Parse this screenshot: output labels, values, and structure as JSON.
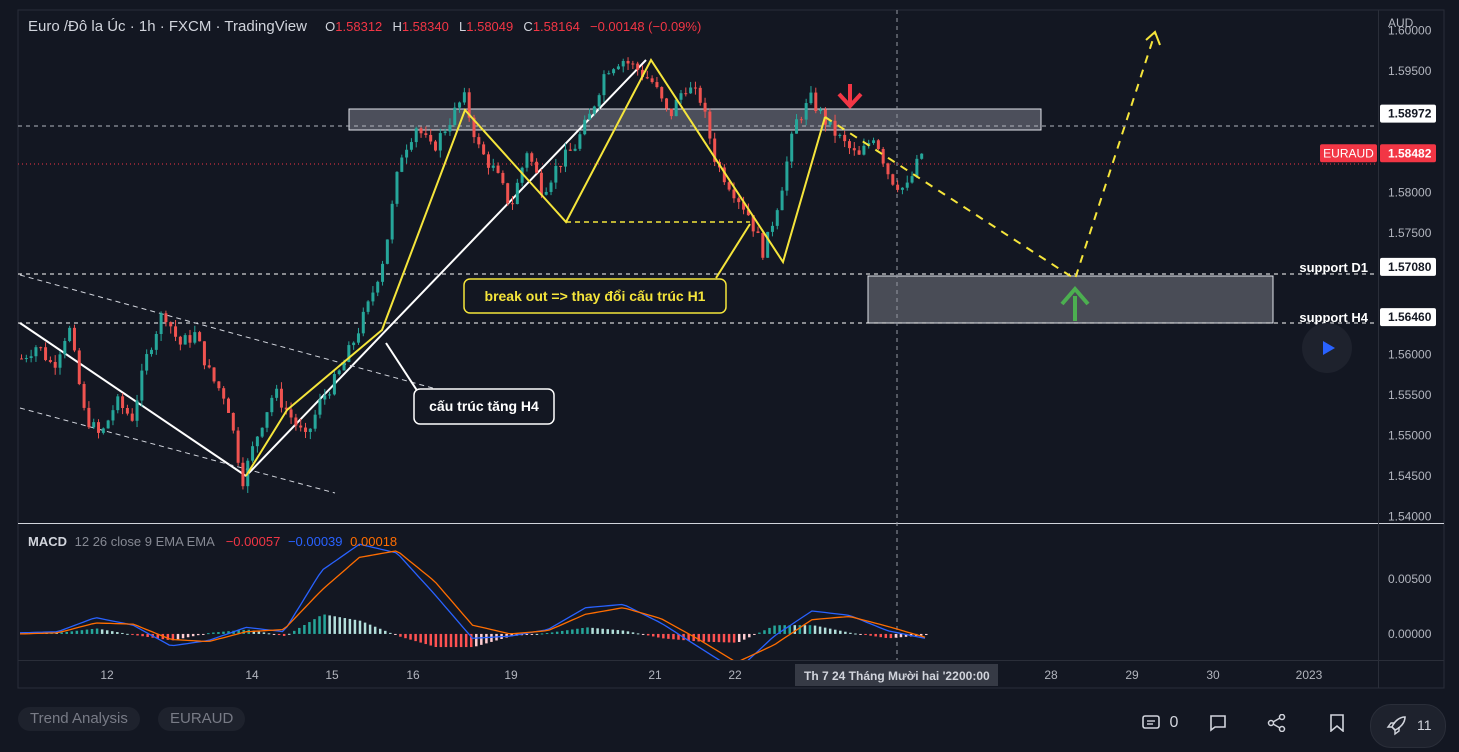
{
  "header": {
    "symbol": "Euro /Đô la Úc · 1h · FXCM · TradingView",
    "o_label": "O",
    "o_value": "1.58312",
    "h_label": "H",
    "h_value": "1.58340",
    "l_label": "L",
    "l_value": "1.58049",
    "c_label": "C",
    "c_value": "1.58164",
    "change": "−0.00148 (−0.09%)"
  },
  "macd_header": {
    "title": "MACD",
    "params": "12 26 close 9 EMA EMA",
    "hist": "−0.00057",
    "macd": "−0.00039",
    "signal": "0.00018"
  },
  "colors": {
    "background": "#131722",
    "up": "#26a69a",
    "down": "#ef5350",
    "yellow": "#f5e53b",
    "macd_line": "#2962ff",
    "signal_line": "#ff6d00",
    "price_tag": "#f23645",
    "arrow_down": "#f23645",
    "arrow_up": "#4caf50"
  },
  "chart_data": {
    "type": "candlestick",
    "currency_label": "AUD",
    "y_ticks": [
      "1.60000",
      "1.59500",
      "1.58000",
      "1.57500",
      "1.56000",
      "1.55500",
      "1.55000",
      "1.54500",
      "1.54000"
    ],
    "ylim": [
      1.5392,
      1.6025
    ],
    "x_ticks": [
      "12",
      "14",
      "15",
      "16",
      "19",
      "21",
      "22",
      "28",
      "29",
      "30",
      "2023"
    ],
    "crosshair_date": "Th 7 24 Tháng Mười hai '22",
    "crosshair_time": "00:00",
    "price_labels": [
      {
        "value": 1.58972,
        "text": "1.58972",
        "style": "level"
      },
      {
        "value": 1.58482,
        "text": "1.58482",
        "style": "current",
        "tag": "EURAUD"
      },
      {
        "value": 1.5708,
        "text": "1.57080",
        "style": "level",
        "tag": "support D1"
      },
      {
        "value": 1.5646,
        "text": "1.56460",
        "style": "level",
        "tag": "support H4"
      }
    ],
    "ohlc_path": [
      1.5595,
      1.5612,
      1.5585,
      1.5635,
      1.5525,
      1.5498,
      1.5542,
      1.5522,
      1.5602,
      1.5655,
      1.5612,
      1.5625,
      1.5572,
      1.5545,
      1.5445,
      1.5505,
      1.5555,
      1.5525,
      1.5495,
      1.5545,
      1.5572,
      1.5615,
      1.5662,
      1.5725,
      1.5845,
      1.5882,
      1.5852,
      1.5885,
      1.5918,
      1.5852,
      1.5825,
      1.5782,
      1.5852,
      1.5802,
      1.5835,
      1.5855,
      1.5895,
      1.5952,
      1.5965,
      1.5952,
      1.5935,
      1.5892,
      1.5932,
      1.5915,
      1.5835,
      1.5805,
      1.5775,
      1.5725,
      1.5795,
      1.5885,
      1.5915,
      1.5885,
      1.5862,
      1.5842,
      1.5872,
      1.5818,
      1.5802,
      1.5848
    ],
    "macd": [
      0.0001,
      0.0002,
      0.0015,
      0.0008,
      -0.0011,
      -0.0006,
      0.0006,
      0.0002,
      0.0058,
      0.0082,
      0.0074,
      0.0036,
      -0.0004,
      -0.0002,
      0.0004,
      0.0024,
      0.0027,
      0.001,
      -0.0012,
      -0.0034,
      -0.0002,
      0.0021,
      0.0017,
      0.0003,
      -0.0004
    ],
    "signal": [
      0.0,
      0.0001,
      0.001,
      0.0009,
      -0.0005,
      -0.0007,
      0.0002,
      0.0004,
      0.004,
      0.007,
      0.0076,
      0.0048,
      0.0008,
      0.0,
      0.0003,
      0.0018,
      0.0024,
      0.0014,
      -0.0005,
      -0.0026,
      -0.001,
      0.0013,
      0.0016,
      0.0007,
      -0.0003
    ],
    "macd_ticks": [
      "0.00500",
      "0.00000"
    ],
    "macd_ylim": [
      -0.0022,
      0.0095
    ],
    "annotations": [
      {
        "name": "breakout-label",
        "text": "break out => thay đổi cấu trúc H1"
      },
      {
        "name": "structure-label",
        "text": "cấu trúc tăng H4"
      }
    ]
  },
  "footer": {
    "tags": [
      "Trend Analysis",
      "EURAUD"
    ],
    "comments": "0",
    "boosts": "11"
  }
}
